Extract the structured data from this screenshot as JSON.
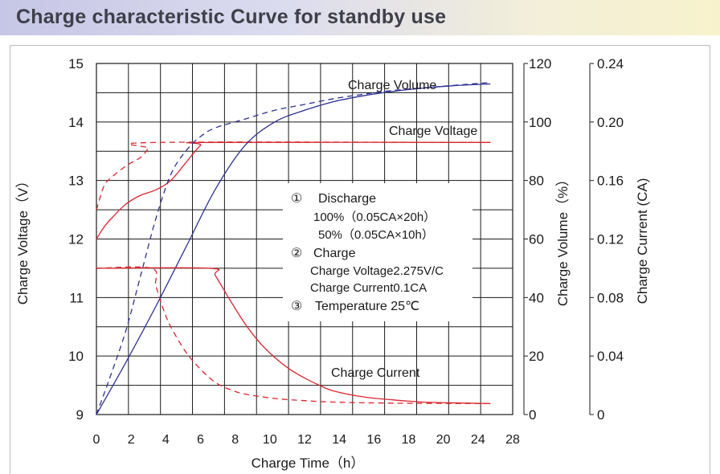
{
  "header": {
    "title": "Charge characteristic Curve for standby use"
  },
  "chart_data": {
    "type": "line",
    "xlabel": "Charge Time（h）",
    "x_ticks": [
      0,
      2,
      4,
      6,
      8,
      10,
      12,
      14,
      16,
      18,
      20,
      24,
      28
    ],
    "xlim": [
      0,
      28
    ],
    "y_axes": {
      "voltage": {
        "label": "Charge Voltage（V）",
        "ticks": [
          9,
          10,
          11,
          12,
          13,
          14,
          15
        ],
        "lim": [
          9,
          15
        ]
      },
      "volume": {
        "label": "Charge Volume（%）",
        "ticks": [
          0,
          20,
          40,
          60,
          80,
          100,
          120
        ],
        "lim": [
          0,
          120
        ]
      },
      "current": {
        "label": "Charge Current (CA)",
        "ticks": [
          "0",
          "0.04",
          "0.08",
          "0.12",
          "0.16",
          "0.20",
          "0.24"
        ],
        "lim": [
          0,
          0.24
        ]
      }
    },
    "grid": true,
    "annotations": {
      "volume": "Charge Volume",
      "voltage": "Charge Voltage",
      "current": "Charge Current"
    },
    "legend_box": [
      {
        "mark": "①",
        "text": "Discharge"
      },
      {
        "mark": "",
        "text": "100%（0.05CA×20h）"
      },
      {
        "mark": "",
        "text": "50%（0.05CA×10h）"
      },
      {
        "mark": "②",
        "text": "Charge"
      },
      {
        "mark": "",
        "text": "Charge Voltage2.275V/C"
      },
      {
        "mark": "",
        "text": "Charge Current0.1CA"
      },
      {
        "mark": "③",
        "text": "Temperature 25℃"
      }
    ],
    "colors": {
      "after_100pct_discharge": "#d8262e",
      "after_50pct_discharge": "#2e3192"
    },
    "series": [
      {
        "quantity": "voltage",
        "axis": "voltage",
        "discharge": "100%",
        "style": "solid",
        "color": "#d8262e",
        "points": [
          [
            0,
            12.0
          ],
          [
            0.5,
            12.2
          ],
          [
            1,
            12.35
          ],
          [
            2,
            12.6
          ],
          [
            3,
            12.75
          ],
          [
            4,
            12.84
          ],
          [
            5,
            13.0
          ],
          [
            6,
            13.3
          ],
          [
            7,
            13.6
          ],
          [
            7.6,
            13.65
          ],
          [
            26.5,
            13.65
          ]
        ]
      },
      {
        "quantity": "voltage",
        "axis": "voltage",
        "discharge": "50%",
        "style": "dashed",
        "color": "#d8262e",
        "points": [
          [
            0,
            12.5
          ],
          [
            0.5,
            12.9
          ],
          [
            1,
            13.05
          ],
          [
            2,
            13.25
          ],
          [
            3,
            13.4
          ],
          [
            3.5,
            13.55
          ],
          [
            4,
            13.65
          ],
          [
            26.5,
            13.65
          ]
        ]
      },
      {
        "quantity": "volume",
        "axis": "volume",
        "discharge": "100%",
        "style": "solid",
        "color": "#2e3192",
        "points": [
          [
            0,
            0
          ],
          [
            2,
            18
          ],
          [
            4,
            37
          ],
          [
            6,
            57
          ],
          [
            8,
            77
          ],
          [
            10,
            92
          ],
          [
            12,
            100
          ],
          [
            14,
            104
          ],
          [
            16,
            107
          ],
          [
            18,
            109
          ],
          [
            20,
            110.5
          ],
          [
            22,
            111.6
          ],
          [
            24,
            112.4
          ],
          [
            26.5,
            113
          ]
        ]
      },
      {
        "quantity": "volume",
        "axis": "volume",
        "discharge": "50%",
        "style": "dashed",
        "color": "#2e3192",
        "points": [
          [
            0,
            0
          ],
          [
            1,
            14
          ],
          [
            2,
            29
          ],
          [
            3,
            48
          ],
          [
            4,
            67
          ],
          [
            5,
            82
          ],
          [
            6,
            90
          ],
          [
            7,
            95
          ],
          [
            8,
            98
          ],
          [
            10,
            101
          ],
          [
            12,
            104
          ],
          [
            14,
            106
          ],
          [
            16,
            108
          ],
          [
            18,
            109.5
          ],
          [
            20,
            110.8
          ],
          [
            24,
            112.5
          ],
          [
            26.5,
            113.5
          ]
        ]
      },
      {
        "quantity": "current",
        "axis": "current",
        "discharge": "100%",
        "style": "solid",
        "color": "#d8262e",
        "points": [
          [
            0,
            0.1
          ],
          [
            7.6,
            0.1
          ],
          [
            8,
            0.095
          ],
          [
            9,
            0.078
          ],
          [
            10,
            0.062
          ],
          [
            11,
            0.049
          ],
          [
            12,
            0.039
          ],
          [
            13,
            0.031
          ],
          [
            14,
            0.025
          ],
          [
            15,
            0.02
          ],
          [
            16,
            0.016
          ],
          [
            18,
            0.012
          ],
          [
            20,
            0.01
          ],
          [
            22,
            0.0085
          ],
          [
            24,
            0.008
          ],
          [
            26.5,
            0.0075
          ]
        ]
      },
      {
        "quantity": "current",
        "axis": "current",
        "discharge": "50%",
        "style": "dashed",
        "color": "#d8262e",
        "points": [
          [
            0,
            0.1
          ],
          [
            3.7,
            0.1
          ],
          [
            4,
            0.088
          ],
          [
            4.5,
            0.072
          ],
          [
            5,
            0.06
          ],
          [
            6,
            0.043
          ],
          [
            7,
            0.031
          ],
          [
            8,
            0.022
          ],
          [
            9,
            0.017
          ],
          [
            10,
            0.014
          ],
          [
            12,
            0.011
          ],
          [
            14,
            0.0095
          ],
          [
            16,
            0.0085
          ],
          [
            20,
            0.0078
          ],
          [
            26.5,
            0.0075
          ]
        ]
      }
    ]
  }
}
